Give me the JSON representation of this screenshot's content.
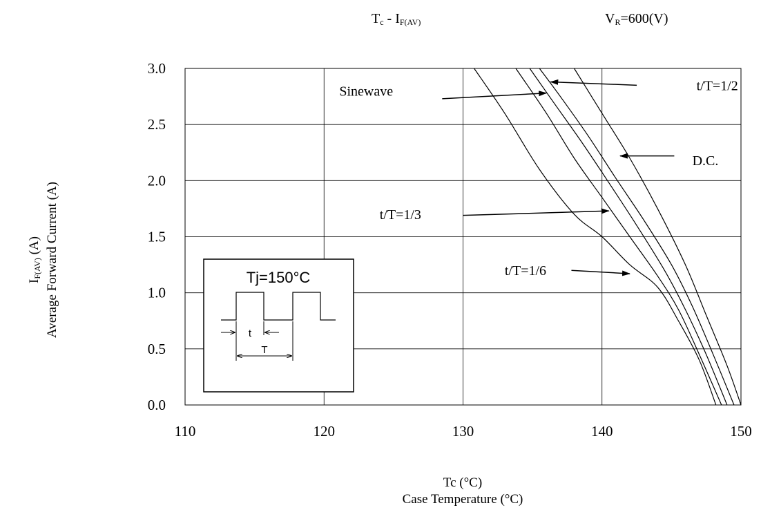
{
  "header": {
    "title_main": "T",
    "title_main_sub": "c",
    "title_dash": " - I",
    "title_dash_sub": "F(AV)",
    "condition_main": "V",
    "condition_sub": "R",
    "condition_value": "=600(V)"
  },
  "chart_data": {
    "type": "line",
    "xlabel": "Tc (°C)",
    "xlabel_sub": "Case Temperature (°C)",
    "ylabel_sym": "I",
    "ylabel_sub": "F(AV)",
    "ylabel_unit": " (A)",
    "ylabel_sub2": "Average Forward Current (A)",
    "xlim": [
      110,
      150
    ],
    "ylim": [
      0,
      3.0
    ],
    "x_ticks": [
      "110",
      "120",
      "130",
      "140",
      "150"
    ],
    "y_ticks": [
      "0.0",
      "0.5",
      "1.0",
      "1.5",
      "2.0",
      "2.5",
      "3.0"
    ],
    "grid": true,
    "series": [
      {
        "name": "t/T=1/6",
        "points": [
          [
            130.8,
            3.0
          ],
          [
            133.0,
            2.6
          ],
          [
            135.5,
            2.1
          ],
          [
            138.0,
            1.7
          ],
          [
            140.0,
            1.5
          ],
          [
            142.0,
            1.25
          ],
          [
            144.0,
            1.05
          ],
          [
            145.5,
            0.75
          ],
          [
            147.0,
            0.4
          ],
          [
            148.2,
            0.0
          ]
        ]
      },
      {
        "name": "t/T=1/3",
        "points": [
          [
            133.8,
            3.0
          ],
          [
            136.0,
            2.6
          ],
          [
            138.0,
            2.2
          ],
          [
            140.0,
            1.85
          ],
          [
            142.0,
            1.5
          ],
          [
            144.0,
            1.15
          ],
          [
            145.5,
            0.85
          ],
          [
            147.0,
            0.45
          ],
          [
            148.6,
            0.0
          ]
        ]
      },
      {
        "name": "Sinewave",
        "points": [
          [
            134.8,
            3.0
          ],
          [
            136.5,
            2.7
          ],
          [
            138.5,
            2.35
          ],
          [
            140.5,
            1.98
          ],
          [
            142.5,
            1.6
          ],
          [
            144.5,
            1.2
          ],
          [
            146.0,
            0.85
          ],
          [
            147.5,
            0.45
          ],
          [
            149.0,
            0.0
          ]
        ]
      },
      {
        "name": "t/T=1/2",
        "points": [
          [
            135.5,
            3.0
          ],
          [
            137.0,
            2.75
          ],
          [
            139.0,
            2.4
          ],
          [
            141.0,
            2.02
          ],
          [
            143.0,
            1.65
          ],
          [
            145.0,
            1.25
          ],
          [
            146.5,
            0.88
          ],
          [
            148.0,
            0.45
          ],
          [
            149.5,
            0.0
          ]
        ]
      },
      {
        "name": "D.C.",
        "points": [
          [
            138.0,
            3.0
          ],
          [
            140.0,
            2.6
          ],
          [
            142.0,
            2.2
          ],
          [
            144.0,
            1.75
          ],
          [
            146.0,
            1.25
          ],
          [
            147.5,
            0.8
          ],
          [
            149.0,
            0.35
          ],
          [
            150.0,
            0.0
          ]
        ]
      }
    ],
    "annotations": [
      {
        "text": "Sinewave",
        "label_x": 121.1,
        "label_y": 2.8,
        "arrow_from": [
          128.5,
          2.73
        ],
        "arrow_to": [
          136.0,
          2.78
        ]
      },
      {
        "text": "t/T=1/2",
        "label_x": 146.8,
        "label_y": 2.85,
        "arrow_from": [
          142.5,
          2.85
        ],
        "arrow_to": [
          136.3,
          2.88
        ]
      },
      {
        "text": "D.C.",
        "label_x": 146.5,
        "label_y": 2.18,
        "arrow_from": [
          145.2,
          2.22
        ],
        "arrow_to": [
          141.3,
          2.22
        ]
      },
      {
        "text": "t/T=1/3",
        "label_x": 124.0,
        "label_y": 1.7,
        "arrow_from": [
          130.0,
          1.69
        ],
        "arrow_to": [
          140.5,
          1.73
        ]
      },
      {
        "text": "t/T=1/6",
        "label_x": 133.0,
        "label_y": 1.2,
        "arrow_from": [
          137.8,
          1.2
        ],
        "arrow_to": [
          142.0,
          1.17
        ]
      }
    ],
    "inset": {
      "title": "Tj=150°C",
      "t_label": "t",
      "T_label": "T"
    }
  }
}
